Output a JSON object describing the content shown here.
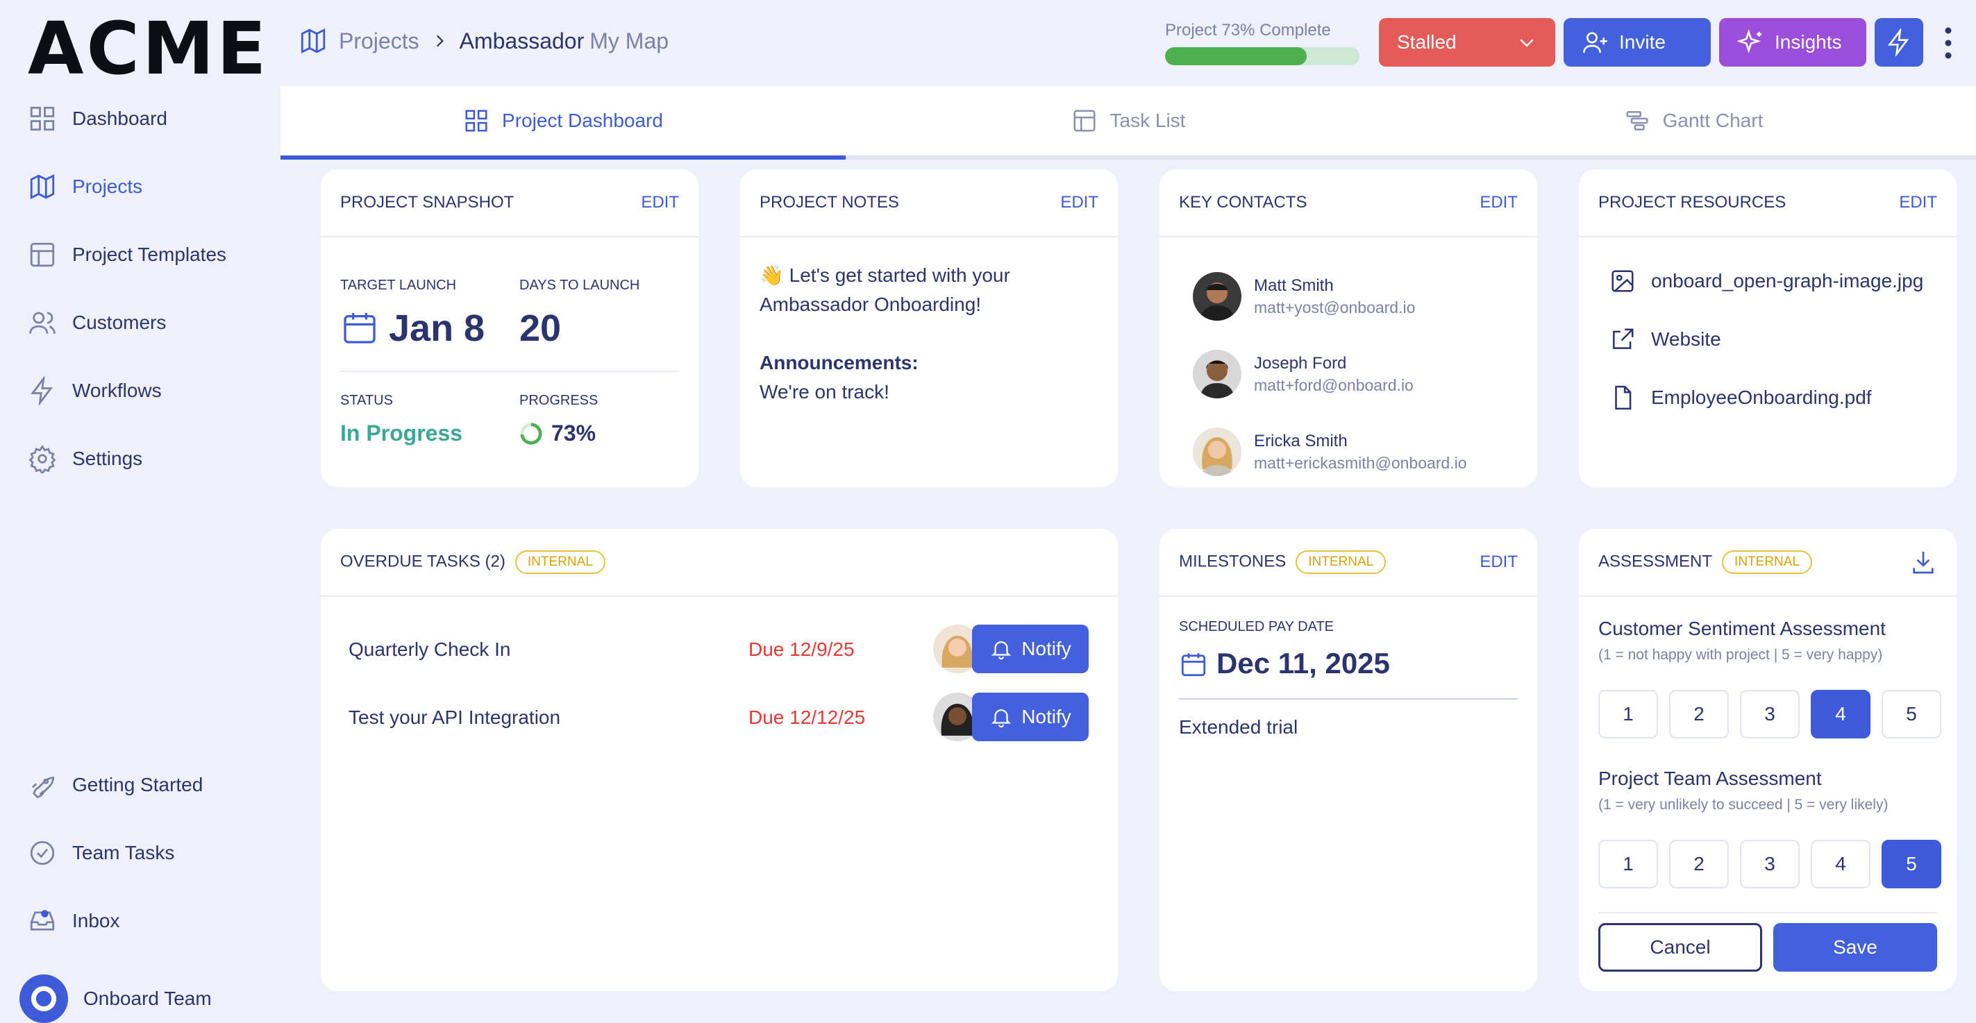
{
  "app": {
    "logo": "ACME"
  },
  "sidebar": {
    "items": [
      {
        "label": "Dashboard",
        "icon": "grid-icon"
      },
      {
        "label": "Projects",
        "icon": "map-icon"
      },
      {
        "label": "Project Templates",
        "icon": "layout-icon"
      },
      {
        "label": "Customers",
        "icon": "users-icon"
      },
      {
        "label": "Workflows",
        "icon": "bolt-icon"
      },
      {
        "label": "Settings",
        "icon": "gear-icon"
      }
    ],
    "bottom": [
      {
        "label": "Getting Started",
        "icon": "rocket-icon"
      },
      {
        "label": "Team Tasks",
        "icon": "check-circle-icon"
      },
      {
        "label": "Inbox",
        "icon": "inbox-icon"
      },
      {
        "label": "Onboard Team",
        "icon": "team-avatar-icon"
      }
    ]
  },
  "header": {
    "crumb_root": "Projects",
    "crumb_project": "Ambassador",
    "crumb_suffix": "My Map",
    "progress_label": "Project 73% Complete",
    "progress": 0.73,
    "status": "Stalled",
    "invite": "Invite",
    "insights": "Insights"
  },
  "colors": {
    "accent": "#3d5bd9",
    "stalled": "#e35a58",
    "insights": "#9b4ddb",
    "progress": "#4caf50",
    "in_progress": "#3aa892",
    "due": "#e53935",
    "badge": "#e8c040"
  },
  "tabs": [
    {
      "label": "Project Dashboard"
    },
    {
      "label": "Task List"
    },
    {
      "label": "Gantt Chart"
    }
  ],
  "snapshot": {
    "title": "PROJECT SNAPSHOT",
    "edit": "EDIT",
    "target_label": "TARGET LAUNCH",
    "target": "Jan 8",
    "days_label": "DAYS TO LAUNCH",
    "days": "20",
    "status_label": "STATUS",
    "status": "In Progress",
    "progress_label": "PROGRESS",
    "progress": "73%"
  },
  "notes": {
    "title": "PROJECT NOTES",
    "edit": "EDIT",
    "line1": "👋 Let's get started with your",
    "line2": "Ambassador Onboarding!",
    "ann": "Announcements:",
    "ann_text": "We're on track!"
  },
  "contacts": {
    "title": "KEY CONTACTS",
    "edit": "EDIT",
    "items": [
      {
        "name": "Matt Smith",
        "email": "matt+yost@onboard.io"
      },
      {
        "name": "Joseph Ford",
        "email": "matt+ford@onboard.io"
      },
      {
        "name": "Ericka Smith",
        "email": "matt+erickasmith@onboard.io"
      }
    ]
  },
  "resources": {
    "title": "PROJECT RESOURCES",
    "edit": "EDIT",
    "items": [
      {
        "label": "onboard_open-graph-image.jpg",
        "icon": "image-icon"
      },
      {
        "label": "Website",
        "icon": "external-link-icon"
      },
      {
        "label": "EmployeeOnboarding.pdf",
        "icon": "file-icon"
      }
    ]
  },
  "overdue": {
    "title": "OVERDUE TASKS (2)",
    "badge": "INTERNAL",
    "notify": "Notify",
    "items": [
      {
        "name": "Quarterly Check In",
        "due": "Due 12/9/25"
      },
      {
        "name": "Test your API Integration",
        "due": "Due 12/12/25"
      }
    ]
  },
  "milestones": {
    "title": "MILESTONES",
    "badge": "INTERNAL",
    "edit": "EDIT",
    "date_label": "SCHEDULED PAY DATE",
    "date": "Dec 11, 2025",
    "note": "Extended trial"
  },
  "assessment": {
    "title": "ASSESSMENT",
    "badge": "INTERNAL",
    "q1": "Customer Sentiment Assessment",
    "q1_hint": "(1 = not happy with project | 5 = very happy)",
    "q1_selected": 4,
    "q2": "Project Team Assessment",
    "q2_hint": "(1 = very unlikely to succeed | 5 = very likely)",
    "q2_selected": 5,
    "scale": [
      "1",
      "2",
      "3",
      "4",
      "5"
    ],
    "cancel": "Cancel",
    "save": "Save"
  }
}
